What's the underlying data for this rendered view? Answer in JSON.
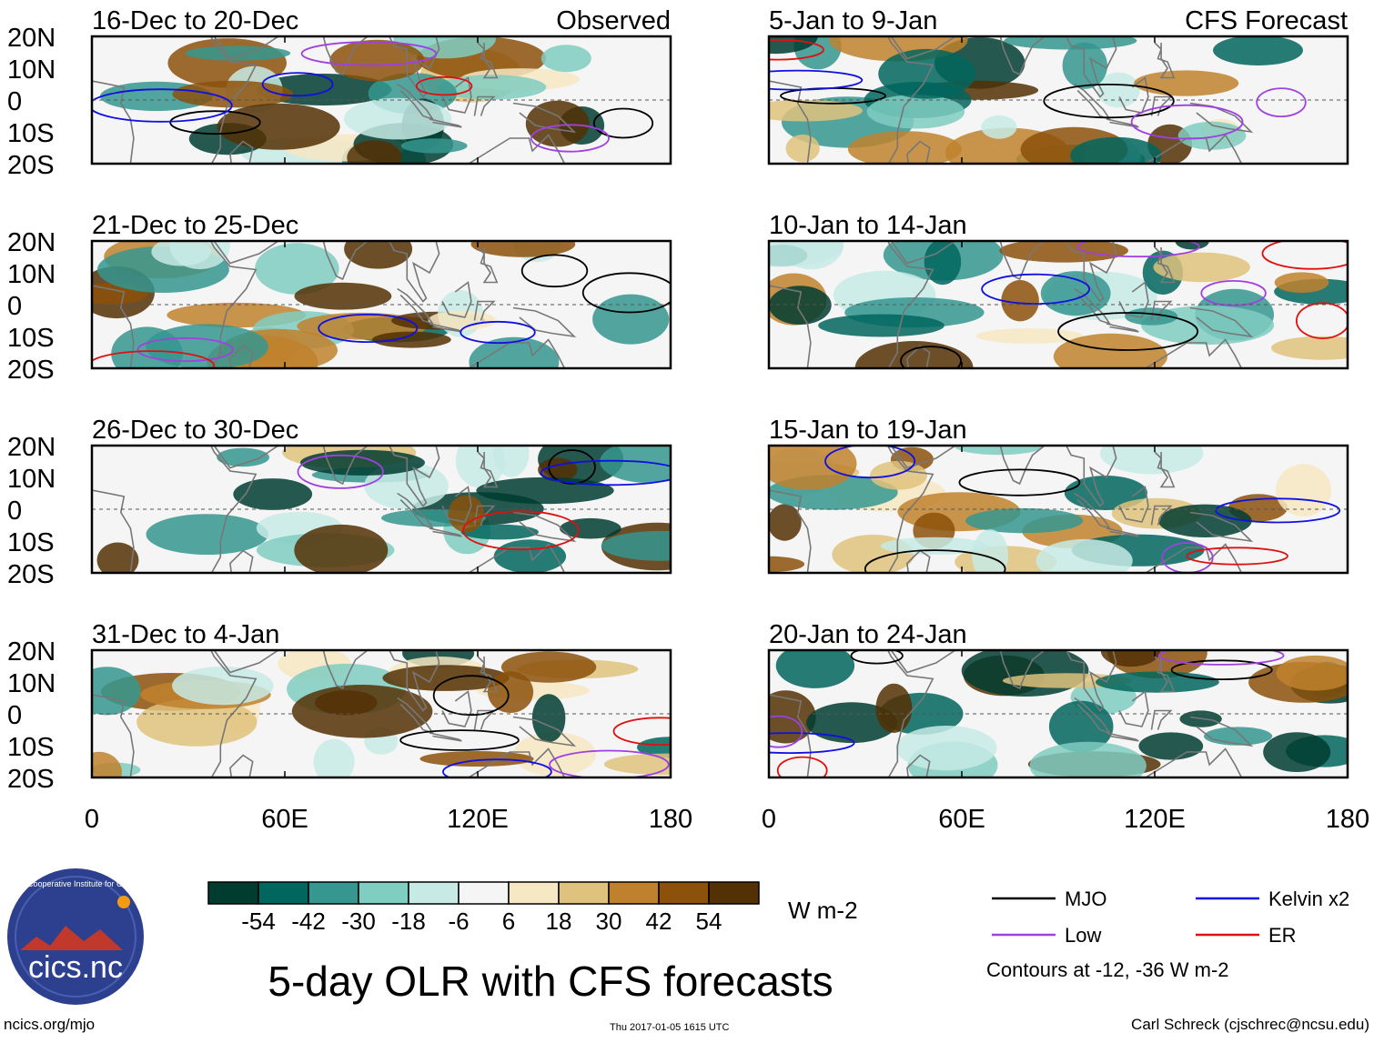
{
  "chart_data": {
    "type": "heatmap",
    "title": "5-day OLR with CFS forecasts",
    "variable": "5-day OLR anomaly",
    "units": "W m-2",
    "columns": [
      {
        "label": "Observed"
      },
      {
        "label": "CFS Forecast"
      }
    ],
    "panels": [
      {
        "period": "16-Dec to 20-Dec",
        "column": 0,
        "row": 0
      },
      {
        "period": "21-Dec to 25-Dec",
        "column": 0,
        "row": 1
      },
      {
        "period": "26-Dec to 30-Dec",
        "column": 0,
        "row": 2
      },
      {
        "period": "31-Dec to 4-Jan",
        "column": 0,
        "row": 3
      },
      {
        "period": "5-Jan to 9-Jan",
        "column": 1,
        "row": 0
      },
      {
        "period": "10-Jan to 14-Jan",
        "column": 1,
        "row": 1
      },
      {
        "period": "15-Jan to 19-Jan",
        "column": 1,
        "row": 2
      },
      {
        "period": "20-Jan to 24-Jan",
        "column": 1,
        "row": 3
      }
    ],
    "x_axis": {
      "range": [
        0,
        180
      ],
      "ticks": [
        0,
        60,
        120,
        180
      ],
      "tick_labels": [
        "0",
        "60E",
        "120E",
        "180"
      ]
    },
    "y_axis": {
      "range": [
        -20,
        20
      ],
      "ticks": [
        20,
        10,
        0,
        -10,
        -20
      ],
      "tick_labels": [
        "20N",
        "10N",
        "0",
        "10S",
        "20S"
      ]
    },
    "colorbar": {
      "labels": [
        "-54",
        "-42",
        "-30",
        "-18",
        "-6",
        "6",
        "18",
        "30",
        "42",
        "54"
      ],
      "colors": [
        "#003c30",
        "#01665e",
        "#35978f",
        "#80cdc1",
        "#c7eae5",
        "#f5f5f5",
        "#f6e8c3",
        "#dfc27d",
        "#bf812d",
        "#8c510a",
        "#543005"
      ]
    },
    "legend": [
      {
        "name": "MJO",
        "color": "#000000"
      },
      {
        "name": "Kelvin x2",
        "color": "#1010e0"
      },
      {
        "name": "Low",
        "color": "#a040e0"
      },
      {
        "name": "ER",
        "color": "#e01010"
      }
    ],
    "contour_note": "Contours at -12, -36 W m-2"
  },
  "branding": {
    "logo_text": "cics.nc",
    "logo_ring_text": "Cooperative Institute for Climate and Satellites"
  },
  "footer": {
    "left": "ncics.org/mjo",
    "center": "Thu 2017-01-05 1615 UTC",
    "right": "Carl Schreck (cjschrec@ncsu.edu)"
  }
}
